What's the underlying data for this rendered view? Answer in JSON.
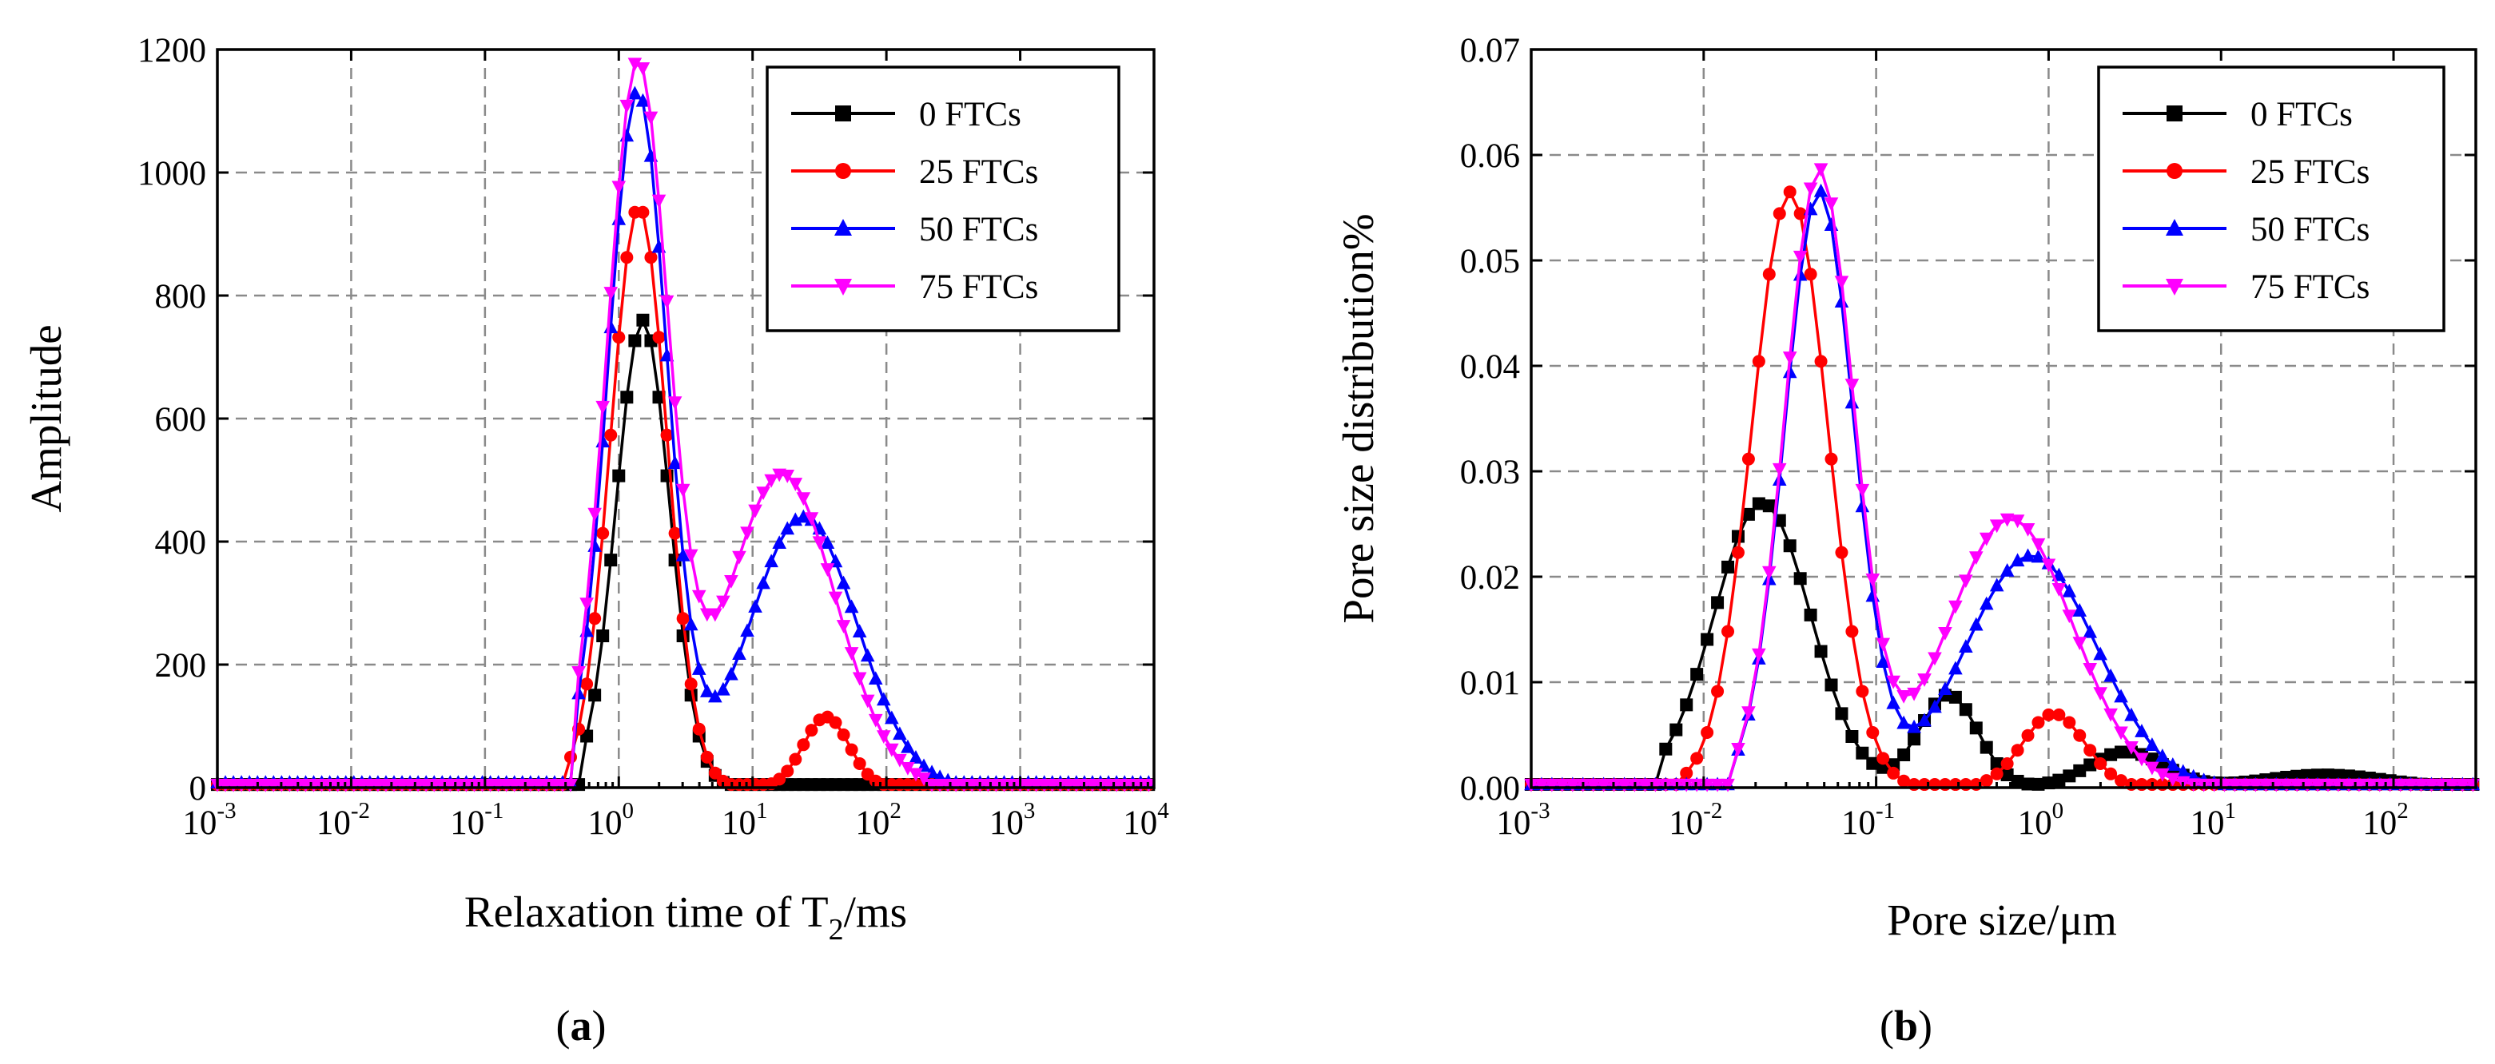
{
  "colors": {
    "0 FTCs": "#000000",
    "25 FTCs": "#ff0000",
    "50 FTCs": "#0000ff",
    "75 FTCs": "#ff00ff"
  },
  "panels": {
    "a": {
      "label_open": "(",
      "label_letter": "a",
      "label_close": ")"
    },
    "b": {
      "label_open": "(",
      "label_letter": "b",
      "label_close": ")"
    }
  },
  "chart_data": [
    {
      "id": "a",
      "type": "line",
      "x_scale": "log",
      "xlim": [
        0.001,
        10000
      ],
      "ylim": [
        0,
        1200
      ],
      "y_ticks": [
        0,
        200,
        400,
        600,
        800,
        1000,
        1200
      ],
      "y_tick_labels": [
        "0",
        "200",
        "400",
        "600",
        "800",
        "1000",
        "1200"
      ],
      "x_tick_exponents": [
        "-3",
        "-2",
        "-1",
        "0",
        "1",
        "2",
        "3",
        "4"
      ],
      "x_tick_base": "10",
      "xlabel": {
        "main": "Relaxation time of T",
        "sub": "2",
        "tail": "/ms"
      },
      "ylabel": "Amplitude",
      "legend": [
        "0 FTCs",
        "25 FTCs",
        "50 FTCs",
        "75 FTCs"
      ],
      "series": [
        {
          "name": "0 FTCs",
          "marker": "square",
          "components": [
            {
              "mu_log10": 0.18,
              "sigma": 0.2,
              "amp": 760
            },
            {
              "mu_log10": 1.4,
              "sigma": 0.2,
              "amp": 5
            }
          ],
          "support_log10": [
            -0.28,
            0.82
          ],
          "baseline_range_log10": [
            -3,
            4
          ],
          "baseline_value": 5
        },
        {
          "name": "25 FTCs",
          "marker": "circle",
          "components": [
            {
              "mu_log10": 0.15,
              "sigma": 0.21,
              "amp": 945
            },
            {
              "mu_log10": 1.55,
              "sigma": 0.17,
              "amp": 115
            }
          ],
          "support_log10": [
            -0.4,
            0.82
          ],
          "support2_log10": [
            0.82,
            2.2
          ],
          "baseline_range_log10": [
            -3,
            4
          ],
          "baseline_value": 5
        },
        {
          "name": "50 FTCs",
          "marker": "triangle-up",
          "components": [
            {
              "mu_log10": 0.14,
              "sigma": 0.22,
              "amp": 1130
            },
            {
              "mu_log10": 1.38,
              "sigma": 0.4,
              "amp": 440
            }
          ],
          "support_log10": [
            -0.33,
            2.65
          ],
          "baseline_range_log10": [
            -3,
            4
          ],
          "baseline_value": 8
        },
        {
          "name": "75 FTCs",
          "marker": "triangle-down",
          "components": [
            {
              "mu_log10": 0.14,
              "sigma": 0.23,
              "amp": 1170
            },
            {
              "mu_log10": 1.22,
              "sigma": 0.4,
              "amp": 510
            }
          ],
          "support_log10": [
            -0.33,
            2.3
          ],
          "baseline_range_log10": [
            -3,
            4
          ],
          "baseline_value": 5
        }
      ]
    },
    {
      "id": "b",
      "type": "line",
      "x_scale": "log",
      "xlim": [
        0.001,
        300
      ],
      "ylim": [
        0,
        0.07
      ],
      "y_ticks": [
        0,
        0.01,
        0.02,
        0.03,
        0.04,
        0.05,
        0.06,
        0.07
      ],
      "y_tick_labels": [
        "0.00",
        "0.01",
        "0.02",
        "0.03",
        "0.04",
        "0.05",
        "0.06",
        "0.07"
      ],
      "x_tick_exponents": [
        "-3",
        "-2",
        "-1",
        "0",
        "1",
        "2"
      ],
      "x_tick_base": "10",
      "xlabel": {
        "main": "Pore size/μm",
        "sub": "",
        "tail": ""
      },
      "ylabel": "Pore size distribution%",
      "legend": [
        "0 FTCs",
        "25 FTCs",
        "50 FTCs",
        "75 FTCs"
      ],
      "series": [
        {
          "name": "0 FTCs",
          "marker": "square",
          "components": [
            {
              "mu_log10": -1.66,
              "sigma": 0.28,
              "amp": 0.027
            },
            {
              "mu_log10": -0.58,
              "sigma": 0.17,
              "amp": 0.0088
            },
            {
              "mu_log10": 0.45,
              "sigma": 0.22,
              "amp": 0.0034
            },
            {
              "mu_log10": 1.6,
              "sigma": 0.35,
              "amp": 0.0012
            }
          ],
          "support_log10": [
            -2.25,
            2.48
          ],
          "baseline_range_log10": [
            -3,
            2.48
          ],
          "baseline_value": 0.0003
        },
        {
          "name": "25 FTCs",
          "marker": "circle",
          "components": [
            {
              "mu_log10": -1.5,
              "sigma": 0.22,
              "amp": 0.0565
            },
            {
              "mu_log10": 0.03,
              "sigma": 0.18,
              "amp": 0.007
            }
          ],
          "support_log10": [
            -2.1,
            -0.8
          ],
          "support2_log10": [
            -0.8,
            0.7
          ],
          "baseline_range_log10": [
            -3,
            2.48
          ],
          "baseline_value": 0.0003
        },
        {
          "name": "50 FTCs",
          "marker": "triangle-up",
          "components": [
            {
              "mu_log10": -1.33,
              "sigma": 0.2,
              "amp": 0.0565
            },
            {
              "mu_log10": -0.1,
              "sigma": 0.38,
              "amp": 0.022
            }
          ],
          "support_log10": [
            -1.85,
            1.1
          ],
          "baseline_range_log10": [
            -3,
            2.48
          ],
          "baseline_value": 0.0003
        },
        {
          "name": "75 FTCs",
          "marker": "triangle-down",
          "components": [
            {
              "mu_log10": -1.33,
              "sigma": 0.2,
              "amp": 0.0585
            },
            {
              "mu_log10": -0.22,
              "sigma": 0.36,
              "amp": 0.0255
            }
          ],
          "support_log10": [
            -1.85,
            0.95
          ],
          "baseline_range_log10": [
            -3,
            2.48
          ],
          "baseline_value": 0.0003
        }
      ]
    }
  ]
}
